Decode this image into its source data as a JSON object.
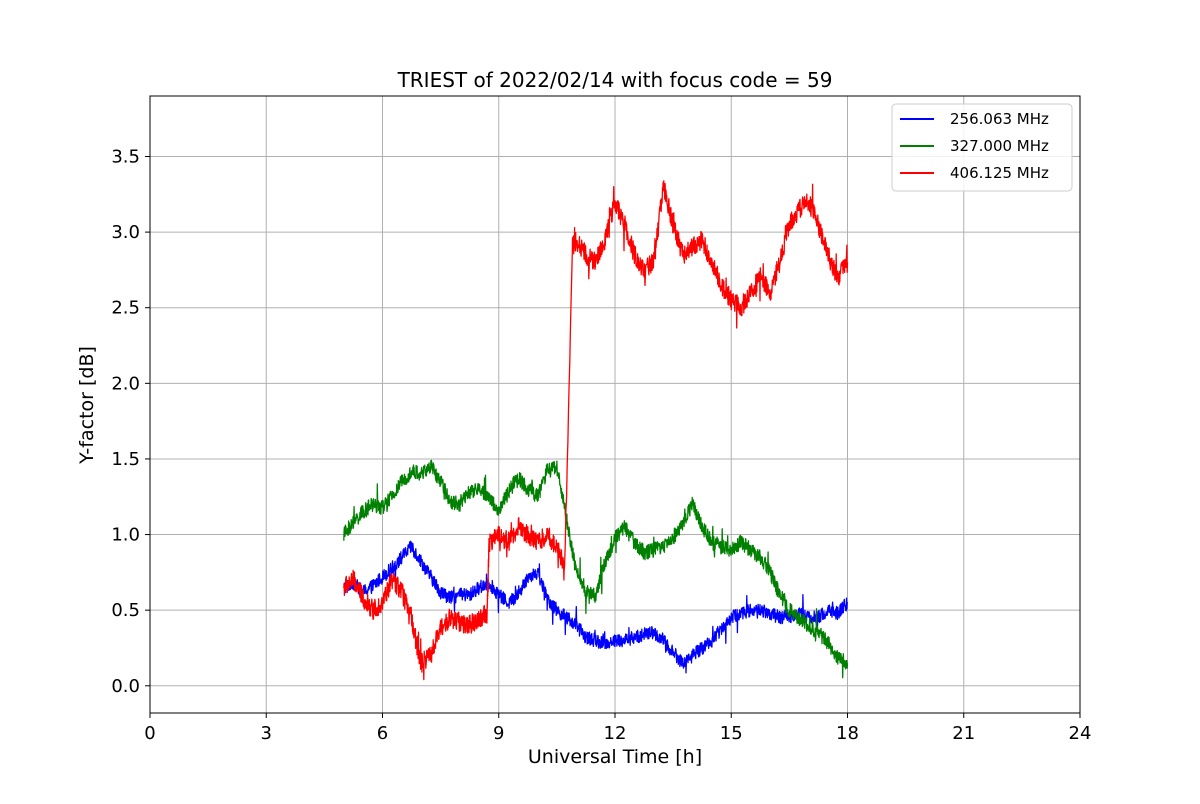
{
  "chart_data": {
    "type": "line",
    "title": "TRIEST of 2022/02/14 with focus code = 59",
    "xlabel": "Universal Time [h]",
    "ylabel": "Y-factor [dB]",
    "xlim": [
      0,
      24
    ],
    "ylim": [
      -0.18,
      3.9
    ],
    "xticks": [
      0,
      3,
      6,
      9,
      12,
      15,
      18,
      21,
      24
    ],
    "xtick_labels": [
      "0",
      "3",
      "6",
      "9",
      "12",
      "15",
      "18",
      "21",
      "24"
    ],
    "yticks": [
      0.0,
      0.5,
      1.0,
      1.5,
      2.0,
      2.5,
      3.0,
      3.5
    ],
    "ytick_labels": [
      "0.0",
      "0.5",
      "1.0",
      "1.5",
      "2.0",
      "2.5",
      "3.0",
      "3.5"
    ],
    "grid": true,
    "legend_position": "top-right",
    "series": [
      {
        "name": "256.063 MHz",
        "color": "#0000ff",
        "x": [
          5.0,
          5.25,
          5.5,
          5.75,
          6.0,
          6.25,
          6.5,
          6.75,
          7.0,
          7.25,
          7.5,
          7.75,
          8.0,
          8.25,
          8.5,
          8.75,
          9.0,
          9.25,
          9.5,
          9.75,
          10.0,
          10.25,
          10.5,
          10.75,
          11.0,
          11.25,
          11.5,
          11.75,
          12.0,
          12.25,
          12.5,
          12.75,
          13.0,
          13.25,
          13.5,
          13.75,
          14.0,
          14.25,
          14.5,
          14.75,
          15.0,
          15.25,
          15.5,
          15.75,
          16.0,
          16.25,
          16.5,
          16.75,
          17.0,
          17.25,
          17.5,
          17.75,
          18.0
        ],
        "y": [
          0.65,
          0.68,
          0.62,
          0.66,
          0.72,
          0.78,
          0.85,
          0.92,
          0.82,
          0.72,
          0.62,
          0.58,
          0.6,
          0.6,
          0.65,
          0.68,
          0.6,
          0.55,
          0.6,
          0.72,
          0.75,
          0.58,
          0.5,
          0.45,
          0.4,
          0.32,
          0.3,
          0.28,
          0.3,
          0.3,
          0.32,
          0.34,
          0.35,
          0.3,
          0.22,
          0.15,
          0.2,
          0.25,
          0.3,
          0.38,
          0.45,
          0.48,
          0.5,
          0.5,
          0.48,
          0.45,
          0.46,
          0.48,
          0.45,
          0.45,
          0.5,
          0.48,
          0.55
        ]
      },
      {
        "name": "327.000 MHz",
        "color": "#008000",
        "x": [
          5.0,
          5.25,
          5.5,
          5.75,
          6.0,
          6.25,
          6.5,
          6.75,
          7.0,
          7.25,
          7.5,
          7.75,
          8.0,
          8.25,
          8.5,
          8.75,
          9.0,
          9.25,
          9.5,
          9.75,
          10.0,
          10.25,
          10.5,
          10.75,
          11.0,
          11.25,
          11.5,
          11.75,
          12.0,
          12.25,
          12.5,
          12.75,
          13.0,
          13.25,
          13.5,
          13.75,
          14.0,
          14.25,
          14.5,
          14.75,
          15.0,
          15.25,
          15.5,
          15.75,
          16.0,
          16.25,
          16.5,
          16.75,
          17.0,
          17.25,
          17.5,
          17.75,
          18.0
        ],
        "y": [
          1.0,
          1.08,
          1.15,
          1.2,
          1.18,
          1.25,
          1.35,
          1.42,
          1.4,
          1.45,
          1.35,
          1.22,
          1.2,
          1.28,
          1.3,
          1.25,
          1.15,
          1.28,
          1.38,
          1.3,
          1.25,
          1.42,
          1.45,
          1.1,
          0.75,
          0.62,
          0.6,
          0.82,
          0.98,
          1.05,
          0.95,
          0.88,
          0.9,
          0.92,
          0.98,
          1.08,
          1.2,
          1.05,
          0.95,
          0.92,
          0.9,
          0.95,
          0.9,
          0.85,
          0.75,
          0.6,
          0.5,
          0.45,
          0.4,
          0.35,
          0.28,
          0.18,
          0.15
        ]
      },
      {
        "name": "406.125 MHz",
        "color": "#ff0000",
        "x": [
          5.0,
          5.25,
          5.5,
          5.75,
          6.0,
          6.25,
          6.5,
          6.75,
          6.9,
          7.0,
          7.25,
          7.5,
          7.75,
          8.0,
          8.25,
          8.5,
          8.7,
          8.75,
          9.0,
          9.25,
          9.5,
          9.75,
          10.0,
          10.25,
          10.5,
          10.7,
          10.8,
          10.9,
          11.0,
          11.25,
          11.5,
          11.75,
          12.0,
          12.25,
          12.5,
          12.75,
          13.0,
          13.25,
          13.5,
          13.75,
          14.0,
          14.25,
          14.5,
          14.75,
          15.0,
          15.25,
          15.5,
          15.75,
          16.0,
          16.25,
          16.5,
          16.75,
          17.0,
          17.25,
          17.5,
          17.75,
          18.0
        ],
        "y": [
          0.65,
          0.7,
          0.58,
          0.5,
          0.55,
          0.7,
          0.62,
          0.45,
          0.25,
          0.15,
          0.2,
          0.38,
          0.45,
          0.42,
          0.4,
          0.45,
          0.48,
          0.95,
          1.0,
          0.95,
          1.05,
          1.0,
          0.95,
          1.0,
          0.92,
          0.8,
          1.8,
          2.9,
          2.95,
          2.85,
          2.8,
          2.95,
          3.2,
          3.05,
          2.85,
          2.75,
          2.8,
          3.3,
          3.05,
          2.85,
          2.9,
          2.95,
          2.8,
          2.65,
          2.55,
          2.5,
          2.6,
          2.7,
          2.6,
          2.8,
          3.05,
          3.15,
          3.2,
          3.05,
          2.85,
          2.7,
          2.8
        ]
      }
    ]
  }
}
